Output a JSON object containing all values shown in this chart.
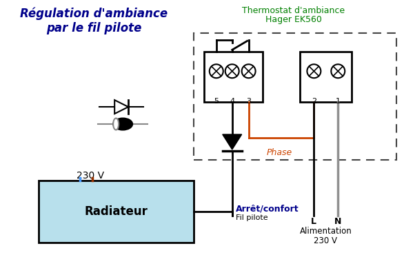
{
  "title_line1": "Régulation d'ambiance",
  "title_line2": "par le fil pilote",
  "thermostat_title1": "Thermostat d'ambiance",
  "thermostat_title2": "Hager EK560",
  "label_230v_left": "230 V",
  "label_radiateur": "Radiateur",
  "label_fil_pilote": "Fil pilote",
  "label_arret_confort": "Arrêt/confort",
  "label_phase": "Phase",
  "label_L": "L",
  "label_N": "N",
  "label_alimentation": "Alimentation",
  "label_230v_right": "230 V",
  "terminal_labels_left": [
    "5",
    "4",
    "3"
  ],
  "terminal_labels_right": [
    "2",
    "1"
  ],
  "bg_color": "#ffffff",
  "title_color": "#00008B",
  "thermostat_color": "#008000",
  "phase_color": "#CC4400",
  "neutral_color": "#909090",
  "wire_black": "#000000",
  "wire_blue": "#4499FF",
  "wire_brown": "#993300",
  "radiateur_fill": "#B8E0EC",
  "dashed_box_color": "#444444"
}
